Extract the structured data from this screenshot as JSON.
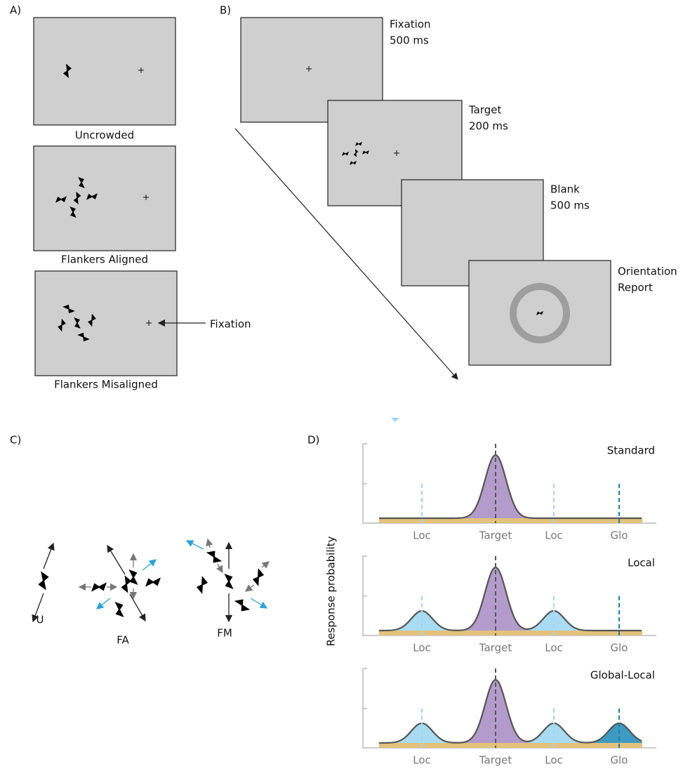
{
  "panels": {
    "a": {
      "label": "A)",
      "conditions": [
        "Uncrowded",
        "Flankers Aligned",
        "Flankers Misaligned"
      ],
      "fixation_label": "Fixation"
    },
    "b": {
      "label": "B)",
      "screens": [
        {
          "lines": [
            "Fixation",
            "500 ms"
          ]
        },
        {
          "lines": [
            "Target",
            "200 ms"
          ]
        },
        {
          "lines": [
            "Blank",
            "500 ms"
          ]
        },
        {
          "lines": [
            "Orientation",
            "Report"
          ]
        }
      ]
    },
    "c": {
      "label": "C)",
      "conditions": [
        "U",
        "FA",
        "FM"
      ]
    },
    "d": {
      "label": "D)",
      "y_label": "Response probability",
      "models": [
        {
          "name": "Standard",
          "ticks": [
            "Loc",
            "Target",
            "Loc",
            "Glo"
          ]
        },
        {
          "name": "Local",
          "ticks": [
            "Loc",
            "Target",
            "Loc",
            "Glo"
          ]
        },
        {
          "name": "Global-Local",
          "ticks": [
            "Loc",
            "Target",
            "Loc",
            "Glo"
          ]
        }
      ]
    }
  }
}
